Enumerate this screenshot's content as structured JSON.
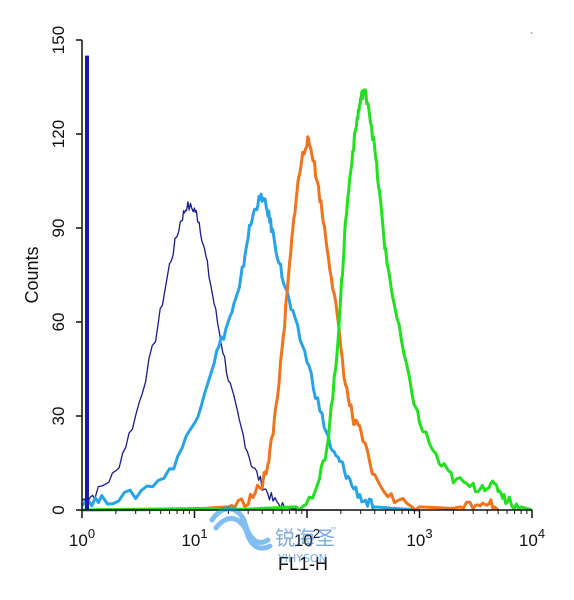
{
  "chart_data": {
    "type": "line",
    "xlabel": "FL1-H",
    "ylabel": "Counts",
    "xscale": "log",
    "xlim": [
      1,
      10000
    ],
    "ylim": [
      0,
      150
    ],
    "yticks": [
      "0",
      "30",
      "60",
      "90",
      "120",
      "150"
    ],
    "xticks": [
      {
        "base": "10",
        "exp": "0"
      },
      {
        "base": "10",
        "exp": "1"
      },
      {
        "base": "10",
        "exp": "2"
      },
      {
        "base": "10",
        "exp": "3"
      },
      {
        "base": "10",
        "exp": "4"
      }
    ],
    "grid": false,
    "legend": "none",
    "series": [
      {
        "color": "#1a1a8c",
        "x": [
          1,
          1.3,
          2,
          3,
          4.5,
          6,
          7.5,
          8.5,
          10,
          11,
          13,
          16,
          20,
          25,
          32,
          40,
          50,
          63,
          70,
          80,
          100,
          200
        ],
        "y": [
          3,
          5,
          12,
          30,
          55,
          78,
          92,
          97,
          96,
          92,
          78,
          60,
          42,
          28,
          15,
          8,
          3,
          1,
          0.5,
          0.3,
          0,
          0
        ]
      },
      {
        "color": "#29a3e6",
        "x": [
          1,
          1.5,
          3,
          6,
          10,
          15,
          20,
          25,
          30,
          35,
          40,
          45,
          50,
          60,
          75,
          100,
          130,
          170,
          200,
          250,
          320,
          400,
          600,
          1000
        ],
        "y": [
          3,
          3,
          5,
          12,
          28,
          48,
          60,
          70,
          88,
          97,
          100,
          95,
          88,
          75,
          62,
          48,
          32,
          18,
          15,
          8,
          3,
          1,
          0.5,
          0
        ]
      },
      {
        "color": "#f0731e",
        "x": [
          1,
          12,
          20,
          30,
          40,
          45,
          50,
          60,
          70,
          80,
          90,
          100,
          110,
          130,
          150,
          180,
          220,
          260,
          300,
          400,
          600,
          1000,
          2000,
          3000,
          4000,
          5000
        ],
        "y": [
          0,
          0.5,
          1,
          3,
          8,
          15,
          25,
          50,
          78,
          100,
          112,
          118,
          115,
          100,
          85,
          65,
          40,
          28,
          25,
          10,
          3,
          1,
          0.5,
          2,
          3,
          0
        ]
      },
      {
        "color": "#22e01e",
        "x": [
          1,
          30,
          80,
          120,
          150,
          180,
          200,
          220,
          250,
          280,
          300,
          320,
          350,
          400,
          450,
          500,
          600,
          800,
          1000,
          1500,
          2000,
          3000,
          4000,
          5000,
          6000,
          8000,
          10000
        ],
        "y": [
          0,
          0.3,
          1,
          5,
          20,
          45,
          68,
          92,
          112,
          125,
          131,
          134,
          130,
          115,
          98,
          82,
          65,
          42,
          28,
          15,
          10,
          7,
          8,
          7,
          3,
          1,
          0
        ]
      }
    ]
  },
  "watermark": {
    "brand_cn": "锐海圣",
    "brand_en": "YIHYSON",
    "tm": "™"
  }
}
